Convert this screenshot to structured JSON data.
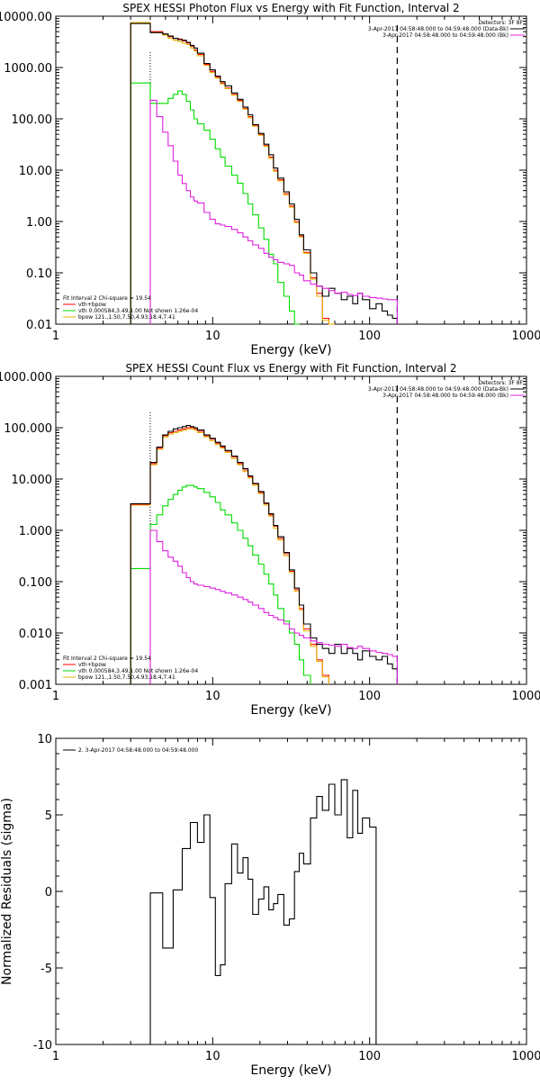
{
  "colors": {
    "data": "#000000",
    "total": "#ff0000",
    "vth": "#00dd00",
    "bpow": "#e020e0",
    "sum": "#e8b000",
    "bg": "#ffffff"
  },
  "chart_data": [
    {
      "type": "line",
      "title": "SPEX HESSI Photon Flux vs Energy with Fit Function, Interval 2",
      "xlabel": "Energy (keV)",
      "ylabel": "",
      "xscale": "log",
      "yscale": "log",
      "xlim": [
        1,
        1000
      ],
      "ylim": [
        0.01,
        10000
      ],
      "xticks": [
        "1",
        "10",
        "100",
        "1000"
      ],
      "yticks": [
        "0.01",
        "0.10",
        "1.00",
        "10.00",
        "100.00",
        "1000.00",
        "10000.00"
      ],
      "grid": false,
      "vlines": {
        "dotted": 4,
        "dashed": 150
      },
      "legend_top": {
        "placement": "top-right",
        "header": "Detectors: 3F 8F",
        "entries": [
          {
            "text": "3-Apr-2017 04:58:48.000 to 04:59:48.000 (Data-Bk)",
            "color": "#000000"
          },
          {
            "text": "3-Apr-2017 04:58:48.000 to 04:59:48.000 (Bk)",
            "color": "#e020e0"
          }
        ]
      },
      "legend_fit": {
        "placement": "bottom-left",
        "header": "Fit Interval 2   Chi-square = 19.54",
        "entries": [
          {
            "text": "vth+bpow",
            "color": "#ff0000"
          },
          {
            "text": "vth 0.000584,3.49,1.00  Not shown 1.26e-04",
            "color": "#00dd00"
          },
          {
            "text": "bpow 121.,1.50,7.50,4.93,18.4,7.41",
            "color": "#e8b000"
          }
        ]
      },
      "edges": [
        3,
        4,
        4.4,
        4.8,
        5.2,
        5.6,
        6,
        6.4,
        6.8,
        7.2,
        7.6,
        8,
        8.8,
        9.6,
        10.4,
        11.2,
        12,
        13.2,
        14.4,
        15.6,
        16.8,
        18,
        19.6,
        21.2,
        22.8,
        24.4,
        26,
        28.4,
        30.8,
        33.2,
        35.6,
        38,
        42,
        46,
        50,
        55,
        60,
        66,
        72,
        78,
        84,
        90,
        100,
        110,
        120,
        130,
        140,
        150
      ],
      "series": [
        {
          "name": "vth+bpow",
          "color": "#ff0000",
          "values": [
            7500,
            5000,
            5000,
            4500,
            4000,
            3700,
            3600,
            3300,
            3000,
            2600,
            2200,
            1800,
            1150,
            840,
            650,
            500,
            400,
            300,
            230,
            160,
            110,
            75,
            50,
            30,
            18,
            10,
            6.5,
            3.5,
            2,
            1,
            0.52,
            0.25,
            0.08,
            0.04,
            0.013,
            0.007
          ]
        },
        {
          "name": "vth",
          "color": "#00dd00",
          "values": [
            500,
            200,
            200,
            200,
            250,
            300,
            350,
            300,
            220,
            150,
            100,
            80,
            60,
            40,
            26,
            18,
            12,
            8,
            5.6,
            3.5,
            2.2,
            1.35,
            0.75,
            0.45,
            0.23,
            0.15,
            0.065,
            0.035,
            0.018,
            0.008
          ]
        },
        {
          "name": "bpow",
          "color": "#e8b000",
          "values": [
            7500,
            4800,
            4800,
            4300,
            3700,
            3400,
            3200,
            3000,
            2800,
            2400,
            2100,
            1700,
            1100,
            800,
            620,
            480,
            390,
            290,
            220,
            155,
            105,
            72,
            48,
            29,
            17,
            9.5,
            6.2,
            3.3,
            1.9,
            0.95,
            0.5,
            0.24,
            0.075,
            0.035,
            0.012,
            0.006
          ]
        },
        {
          "name": "Data-Bk",
          "color": "#000000",
          "values": [
            7200,
            4800,
            4800,
            4500,
            4100,
            3700,
            3500,
            3400,
            3100,
            2700,
            2400,
            1900,
            1200,
            900,
            680,
            530,
            440,
            320,
            240,
            170,
            120,
            77,
            52,
            32,
            20,
            11,
            7,
            3.8,
            2.2,
            1.1,
            0.55,
            0.28,
            0.1,
            0.055,
            0.035,
            0.05,
            0.04,
            0.03,
            0.035,
            0.025,
            0.04,
            0.03,
            0.02,
            0.025,
            0.018,
            0.015,
            0.013
          ]
        },
        {
          "name": "Bk",
          "color": "#e020e0",
          "values": [
            null,
            230,
            110,
            55,
            30,
            15,
            8,
            5.5,
            4,
            3,
            2.5,
            2.3,
            1.5,
            1.1,
            0.9,
            0.85,
            0.8,
            0.7,
            0.6,
            0.5,
            0.42,
            0.35,
            0.3,
            0.24,
            0.2,
            0.18,
            0.16,
            0.15,
            0.14,
            0.1,
            0.09,
            0.07,
            0.06,
            0.055,
            0.05,
            0.045,
            0.04,
            0.042,
            0.038,
            0.036,
            0.04,
            0.035,
            0.033,
            0.032,
            0.031,
            0.03,
            0.03
          ]
        }
      ]
    },
    {
      "type": "line",
      "title": "SPEX HESSI Count Flux vs Energy with Fit Function, Interval 2",
      "xlabel": "Energy (keV)",
      "ylabel": "",
      "xscale": "log",
      "yscale": "log",
      "xlim": [
        1,
        1000
      ],
      "ylim": [
        0.001,
        1000
      ],
      "xticks": [
        "1",
        "10",
        "100",
        "1000"
      ],
      "yticks": [
        "0.001",
        "0.010",
        "0.100",
        "1.000",
        "10.000",
        "100.000",
        "1000.000"
      ],
      "grid": false,
      "vlines": {
        "dotted": 4,
        "dashed": 150
      },
      "legend_top": {
        "placement": "top-right",
        "header": "Detectors: 3F 8F",
        "entries": [
          {
            "text": "3-Apr-2017 04:58:48.000 to 04:59:48.000 (Data-Bk)",
            "color": "#000000"
          },
          {
            "text": "3-Apr-2017 04:58:48.000 to 04:59:48.000 (Bk)",
            "color": "#e020e0"
          }
        ]
      },
      "legend_fit": {
        "placement": "bottom-left",
        "header": "Fit Interval 2   Chi-square = 19.54",
        "entries": [
          {
            "text": "vth+bpow",
            "color": "#ff0000"
          },
          {
            "text": "vth 0.000584,3.49,1.00  Not shown 1.26e-04",
            "color": "#00dd00"
          },
          {
            "text": "bpow 121.,1.50,7.50,4.93,18.4,7.41",
            "color": "#e8b000"
          }
        ]
      },
      "edges": [
        3,
        4,
        4.4,
        4.8,
        5.2,
        5.6,
        6,
        6.4,
        6.8,
        7.2,
        7.6,
        8,
        8.8,
        9.6,
        10.4,
        11.2,
        12,
        13.2,
        14.4,
        15.6,
        16.8,
        18,
        19.6,
        21.2,
        22.8,
        24.4,
        26,
        28.4,
        30.8,
        33.2,
        35.6,
        38,
        42,
        46,
        50,
        55,
        60,
        66,
        72,
        78,
        84,
        90,
        100,
        110,
        120,
        130,
        140,
        150
      ],
      "series": [
        {
          "name": "vth+bpow",
          "color": "#ff0000",
          "values": [
            3.2,
            20,
            40,
            70,
            80,
            85,
            90,
            95,
            100,
            100,
            95,
            85,
            70,
            60,
            50,
            42,
            35,
            27,
            20,
            15,
            11,
            8,
            5.5,
            3.3,
            2,
            1.2,
            0.7,
            0.35,
            0.16,
            0.07,
            0.03,
            0.012,
            0.006,
            0.003,
            0.0015
          ]
        },
        {
          "name": "vth",
          "color": "#00dd00",
          "values": [
            0.18,
            1.3,
            2,
            3,
            4,
            5,
            6,
            7,
            7.5,
            7.5,
            7,
            6.5,
            5.5,
            4.5,
            3.5,
            2.5,
            2,
            1.4,
            1,
            0.7,
            0.5,
            0.33,
            0.22,
            0.14,
            0.09,
            0.055,
            0.03,
            0.017,
            0.01,
            0.006,
            0.003,
            0.0015
          ]
        },
        {
          "name": "bpow",
          "color": "#e8b000",
          "values": [
            3.1,
            19,
            38,
            66,
            75,
            80,
            85,
            90,
            95,
            95,
            90,
            80,
            66,
            56,
            47,
            40,
            33,
            25,
            19,
            14,
            10.5,
            7.5,
            5.2,
            3.1,
            1.9,
            1.1,
            0.65,
            0.32,
            0.15,
            0.065,
            0.028,
            0.011,
            0.0055,
            0.0028,
            0.0014
          ]
        },
        {
          "name": "Data-Bk",
          "color": "#000000",
          "values": [
            3.3,
            21,
            42,
            72,
            85,
            95,
            100,
            105,
            110,
            105,
            100,
            90,
            72,
            62,
            52,
            44,
            36,
            28,
            21,
            16,
            11.5,
            8.2,
            5.7,
            3.4,
            2.1,
            1.25,
            0.75,
            0.37,
            0.17,
            0.075,
            0.035,
            0.015,
            0.008,
            0.006,
            0.005,
            0.004,
            0.006,
            0.004,
            0.005,
            0.004,
            0.003,
            0.0045,
            0.0035,
            0.003,
            0.0035,
            0.0025,
            0.002
          ]
        },
        {
          "name": "Bk",
          "color": "#e020e0",
          "values": [
            null,
            1,
            0.6,
            0.4,
            0.3,
            0.25,
            0.2,
            0.15,
            0.12,
            0.1,
            0.09,
            0.085,
            0.08,
            0.075,
            0.07,
            0.065,
            0.06,
            0.055,
            0.05,
            0.045,
            0.04,
            0.035,
            0.03,
            0.025,
            0.022,
            0.02,
            0.018,
            0.015,
            0.012,
            0.01,
            0.009,
            0.008,
            0.007,
            0.0065,
            0.006,
            0.0058,
            0.0055,
            0.006,
            0.0052,
            0.005,
            0.0055,
            0.005,
            0.0045,
            0.0042,
            0.004,
            0.0038,
            0.0035
          ]
        }
      ]
    },
    {
      "type": "line",
      "title": "",
      "xlabel": "Energy (keV)",
      "ylabel": "Normalized Residuals (sigma)",
      "xscale": "log",
      "yscale": "linear",
      "xlim": [
        1,
        1000
      ],
      "ylim": [
        -10,
        10
      ],
      "xticks": [
        "1",
        "10",
        "100",
        "1000"
      ],
      "yticks": [
        "-10",
        "-5",
        "0",
        "5",
        "10"
      ],
      "grid": false,
      "legend_top": {
        "placement": "top-left",
        "entries": [
          {
            "text": "2.  3-Apr-2017 04:58:48.000 to 04:59:48.000",
            "color": "#000000"
          }
        ]
      },
      "edges": [
        4,
        4.8,
        5.6,
        6.4,
        7.2,
        8,
        8.8,
        9.6,
        10.4,
        11.2,
        12,
        13.2,
        14.4,
        15.6,
        16.8,
        18,
        19.6,
        21.2,
        22.8,
        24.4,
        26,
        28.4,
        30.8,
        33.2,
        35.6,
        38,
        42,
        46,
        50,
        55,
        60,
        66,
        72,
        78,
        84,
        90,
        100,
        110,
        120,
        130,
        140,
        150
      ],
      "series": [
        {
          "name": "residuals",
          "color": "#000000",
          "values": [
            -0.1,
            -3.7,
            0.1,
            2.8,
            4.5,
            3.2,
            5.0,
            -0.4,
            -5.5,
            -4.8,
            0.5,
            3.1,
            1.2,
            2.2,
            0.8,
            -1.5,
            -0.5,
            0.3,
            -1.2,
            -0.8,
            -0.2,
            -2.2,
            -1.8,
            1.3,
            2.5,
            1.8,
            4.8,
            6.2,
            5.3,
            7.0,
            5.0,
            7.3,
            3.5,
            6.6,
            3.8,
            4.8,
            4.2
          ]
        }
      ]
    }
  ]
}
